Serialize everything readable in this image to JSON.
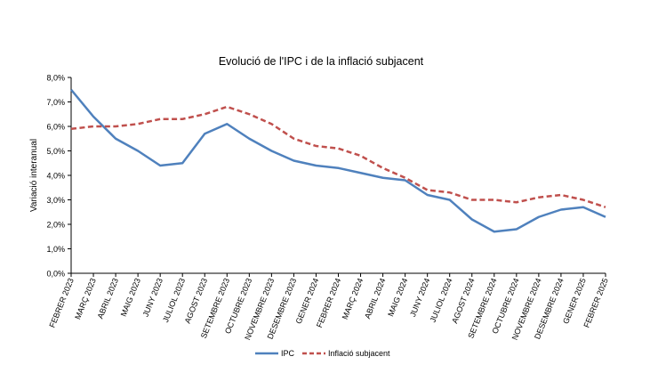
{
  "chart_data": {
    "type": "line",
    "title": "Evolució de l'IPC i de la inflació subjacent",
    "xlabel": "",
    "ylabel": "Variació interanual",
    "ylim": [
      0,
      8
    ],
    "yticks": [
      "0,0%",
      "1,0%",
      "2,0%",
      "3,0%",
      "4,0%",
      "5,0%",
      "6,0%",
      "7,0%",
      "8,0%"
    ],
    "grid": false,
    "legend": "bottom",
    "categories": [
      "FEBRER 2023",
      "MARÇ 2023",
      "ABRIL 2023",
      "MAIG 2023",
      "JUNY 2023",
      "JULIOL 2023",
      "AGOST 2023",
      "SETEMBRE 2023",
      "OCTUBRE 2023",
      "NOVEMBRE 2023",
      "DESEMBRE 2023",
      "GENER 2024",
      "FEBRER 2024",
      "MARÇ 2024",
      "ABRIL 2024",
      "MAIG 2024",
      "JUNY 2024",
      "JULIOL 2024",
      "AGOST 2024",
      "SETEMBRE 2024",
      "OCTUBRE 2024",
      "NOVEMBRE 2024",
      "DESEMBRE 2024",
      "GENER 2025",
      "FEBRER 2025"
    ],
    "series": [
      {
        "name": "IPC",
        "color": "#4f81bd",
        "style": "solid",
        "values": [
          7.5,
          6.4,
          5.5,
          5.0,
          4.4,
          4.5,
          5.7,
          6.1,
          5.5,
          5.0,
          4.6,
          4.4,
          4.3,
          4.1,
          3.9,
          3.8,
          3.2,
          3.0,
          2.2,
          1.7,
          1.8,
          2.3,
          2.6,
          2.7,
          2.3
        ]
      },
      {
        "name": "Inflació subjacent",
        "color": "#c0504d",
        "style": "dashed",
        "values": [
          5.9,
          6.0,
          6.0,
          6.1,
          6.3,
          6.3,
          6.5,
          6.8,
          6.5,
          6.1,
          5.5,
          5.2,
          5.1,
          4.8,
          4.3,
          3.9,
          3.4,
          3.3,
          3.0,
          3.0,
          2.9,
          3.1,
          3.2,
          3.0,
          2.7
        ]
      }
    ]
  }
}
